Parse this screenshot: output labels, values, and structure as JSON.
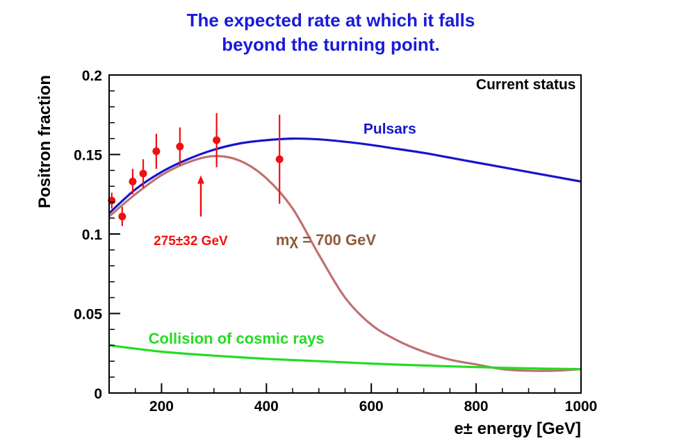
{
  "chart_data": {
    "type": "line",
    "title_lines": [
      "The expected rate at which it falls",
      "beyond the turning point."
    ],
    "title_color": "#1a1adb",
    "xlabel": "e± energy [GeV]",
    "ylabel": "Positron fraction",
    "xlim": [
      100,
      1000
    ],
    "ylim": [
      0,
      0.2
    ],
    "x_ticks": [
      200,
      400,
      600,
      800,
      1000
    ],
    "y_ticks": [
      0,
      0.05,
      0.1,
      0.15,
      0.2
    ],
    "x_tick_labels": [
      "200",
      "400",
      "600",
      "800",
      "1000"
    ],
    "y_tick_labels": [
      "0",
      "0.05",
      "0.1",
      "0.15",
      "0.2"
    ],
    "grid": false,
    "legend": "none",
    "series": [
      {
        "name": "Pulsars",
        "color": "#1515cc",
        "x": [
          100,
          150,
          200,
          250,
          300,
          350,
          400,
          450,
          500,
          550,
          600,
          650,
          700,
          750,
          800,
          850,
          900,
          950,
          1000
        ],
        "y": [
          0.113,
          0.128,
          0.139,
          0.147,
          0.153,
          0.157,
          0.159,
          0.16,
          0.1595,
          0.158,
          0.156,
          0.1535,
          0.151,
          0.148,
          0.145,
          0.142,
          0.139,
          0.136,
          0.133
        ]
      },
      {
        "name": "mχ = 700 GeV",
        "color": "#c07070",
        "x": [
          100,
          150,
          200,
          250,
          300,
          350,
          400,
          450,
          500,
          550,
          600,
          650,
          700,
          750,
          800,
          850,
          900,
          950,
          1000
        ],
        "y": [
          0.111,
          0.125,
          0.137,
          0.145,
          0.149,
          0.146,
          0.135,
          0.116,
          0.087,
          0.06,
          0.043,
          0.033,
          0.026,
          0.021,
          0.018,
          0.015,
          0.014,
          0.014,
          0.015
        ]
      },
      {
        "name": "Collision of cosmic rays",
        "color": "#22dd22",
        "x": [
          100,
          200,
          300,
          400,
          500,
          600,
          700,
          800,
          900,
          1000
        ],
        "y": [
          0.03,
          0.026,
          0.0235,
          0.0215,
          0.02,
          0.0185,
          0.0173,
          0.0163,
          0.0155,
          0.015
        ]
      }
    ],
    "data_points": {
      "color": "#ee1111",
      "x": [
        105,
        125,
        145,
        165,
        190,
        235,
        305,
        425
      ],
      "y": [
        0.121,
        0.111,
        0.133,
        0.138,
        0.152,
        0.155,
        0.159,
        0.147
      ],
      "y_err": [
        0.005,
        0.006,
        0.008,
        0.009,
        0.011,
        0.012,
        0.017,
        0.028
      ]
    },
    "annotations": [
      {
        "text": "Current status",
        "x": 990,
        "y": 0.191,
        "color": "#000000",
        "anchor": "end",
        "size": 21
      },
      {
        "text": "Pulsars",
        "x": 585,
        "y": 0.163,
        "color": "#1515cc",
        "anchor": "start",
        "size": 21
      },
      {
        "text": "275±32 GeV",
        "x": 185,
        "y": 0.093,
        "color": "#ee1111",
        "anchor": "start",
        "size": 19
      },
      {
        "text": "mχ = 700 GeV",
        "x": 418,
        "y": 0.093,
        "color": "#8c5a3c",
        "anchor": "start",
        "size": 22
      },
      {
        "text": "Collision of cosmic rays",
        "x": 175,
        "y": 0.031,
        "color": "#22dd22",
        "anchor": "start",
        "size": 22
      }
    ],
    "arrow": {
      "x": 275,
      "y_from": 0.111,
      "y_to": 0.136,
      "color": "#ee1111"
    }
  }
}
